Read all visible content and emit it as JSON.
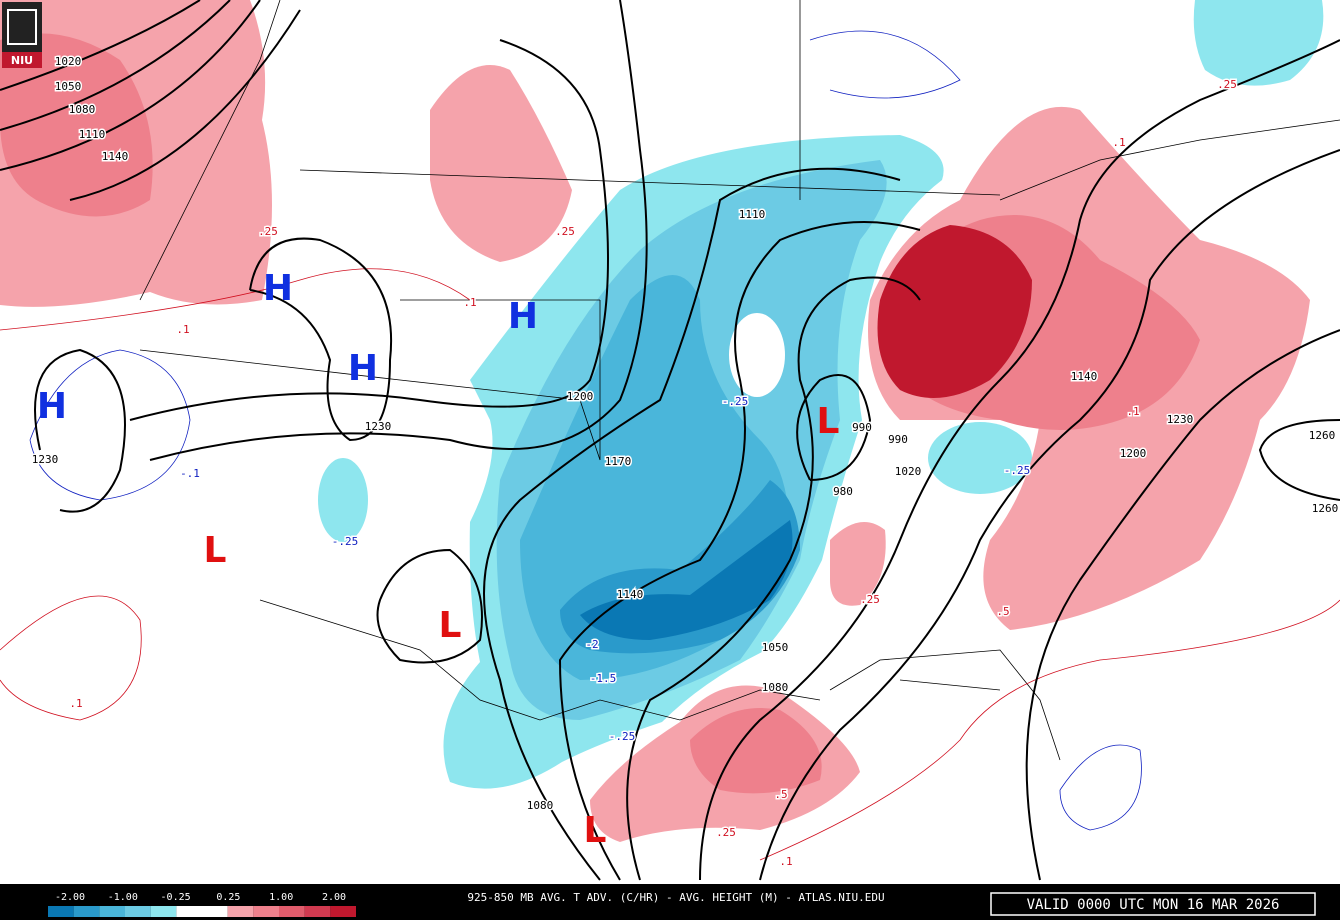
{
  "header": {
    "logo": "NIU"
  },
  "map": {
    "highs": [
      "H",
      "H",
      "H",
      "H"
    ],
    "lows": [
      "L",
      "L",
      "L",
      "L"
    ],
    "height_labels": [
      "1020",
      "1050",
      "1080",
      "1110",
      "1140",
      "1230",
      "1230",
      "1200",
      "1170",
      "1110",
      "1140",
      "1050",
      "1080",
      "1080",
      "990",
      "990",
      "1020",
      "980",
      "1140",
      "1230",
      "1200",
      "1260",
      "1260"
    ],
    "warm_labels": [
      ".25",
      ".25",
      ".1",
      ".1",
      ".25",
      ".1",
      ".5",
      ".25",
      ".1",
      ".1",
      ".25",
      ".5",
      ".1"
    ],
    "cold_labels": [
      "-.1",
      "-.25",
      "-2",
      "-1.5",
      "-.25",
      "-.25",
      "-.25"
    ]
  },
  "colorbar": {
    "colors": [
      "#0a78b4",
      "#2a9acb",
      "#4ab6da",
      "#6ccbe4",
      "#8ee6ee",
      "#ffffff",
      "#ffffff",
      "#f5a3ab",
      "#ee808c",
      "#e15c6c",
      "#d13a50",
      "#c0182e"
    ],
    "labels": [
      "-2.00",
      "-1.00",
      "-0.25",
      "0.25",
      "1.00",
      "2.00"
    ]
  },
  "footer": {
    "title": "925-850 MB AVG. T ADV. (C/HR) - AVG. HEIGHT (M) - ATLAS.NIU.EDU",
    "valid": "VALID 0000 UTC MON 16 MAR 2026"
  }
}
